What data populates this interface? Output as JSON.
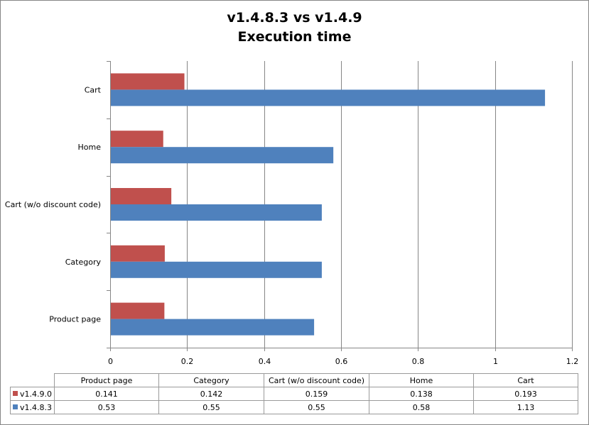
{
  "chart_data": {
    "type": "bar",
    "orientation": "horizontal",
    "title": [
      "v1.4.8.3  vs v1.4.9",
      "Execution time"
    ],
    "categories": [
      "Product page",
      "Category",
      "Cart (w/o discount code)",
      "Home",
      "Cart"
    ],
    "series": [
      {
        "name": "v1.4.9.0",
        "color": "#c0504d",
        "values": [
          0.141,
          0.142,
          0.159,
          0.138,
          0.193
        ]
      },
      {
        "name": "v1.4.8.3",
        "color": "#4f81bd",
        "values": [
          0.53,
          0.55,
          0.55,
          0.58,
          1.13
        ]
      }
    ],
    "xlim": [
      0,
      1.2
    ],
    "xticks": [
      0,
      0.2,
      0.4,
      0.6,
      0.8,
      1,
      1.2
    ],
    "grid": true,
    "legend": "data-table",
    "table": {
      "rows": [
        {
          "series": "v1.4.9.0",
          "color": "#c0504d",
          "cells": [
            "0.141",
            "0.142",
            "0.159",
            "0.138",
            "0.193"
          ]
        },
        {
          "series": "v1.4.8.3",
          "color": "#4f81bd",
          "cells": [
            "0.53",
            "0.55",
            "0.55",
            "0.58",
            "1.13"
          ]
        }
      ]
    }
  }
}
